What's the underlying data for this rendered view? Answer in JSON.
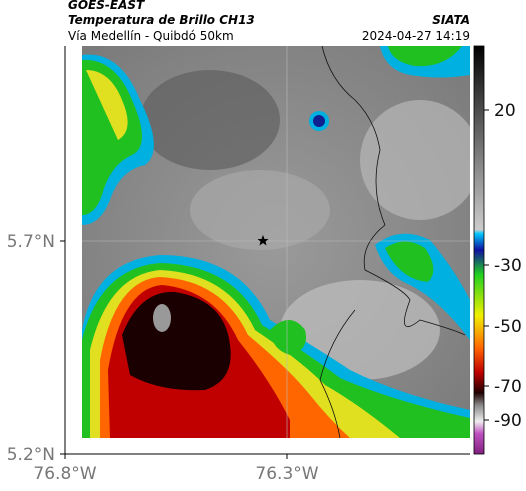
{
  "header": {
    "satellite": "GOES-EAST",
    "product": "Temperatura de Brillo CH13",
    "route": "Vía Medellín - Quibdó 50km",
    "source": "SIATA",
    "timestamp": "2024-04-27 14:19"
  },
  "axes": {
    "y_ticks": [
      "5.7°N",
      "5.2°N"
    ],
    "x_ticks": [
      "76.8°W",
      "76.3°W"
    ]
  },
  "colorbar": {
    "ticks": [
      "20",
      "-30",
      "-50",
      "-70",
      "-90"
    ]
  }
}
